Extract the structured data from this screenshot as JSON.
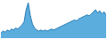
{
  "chart_data": {
    "type": "area",
    "series": [
      {
        "type": "area",
        "color": "#5baddd",
        "values": [
          5,
          7,
          6,
          8,
          7,
          9,
          8,
          10,
          9,
          11,
          13,
          16,
          28,
          35,
          22,
          14,
          10,
          8,
          7,
          8,
          7,
          8,
          7,
          8,
          9,
          8,
          9,
          10,
          11,
          12,
          13,
          14,
          15,
          16,
          17,
          18,
          17,
          19,
          20,
          21,
          22,
          23,
          22,
          24,
          26,
          28,
          25,
          27,
          24,
          26,
          23
        ]
      },
      {
        "type": "line",
        "color": "#2a7db5",
        "values": [
          5,
          7,
          6,
          8,
          7,
          9,
          8,
          10,
          9,
          11,
          13,
          16,
          28,
          35,
          22,
          14,
          10,
          8,
          7,
          8,
          7,
          8,
          7,
          8,
          9,
          8,
          9,
          10,
          11,
          12,
          13,
          14,
          15,
          16,
          17,
          18,
          17,
          19,
          20,
          21,
          22,
          23,
          22,
          24,
          26,
          28,
          25,
          27,
          24,
          26,
          23
        ]
      }
    ],
    "xlim": [
      0,
      50
    ],
    "ylim": [
      0,
      36.75
    ],
    "tick_labels": false,
    "grid": false
  }
}
